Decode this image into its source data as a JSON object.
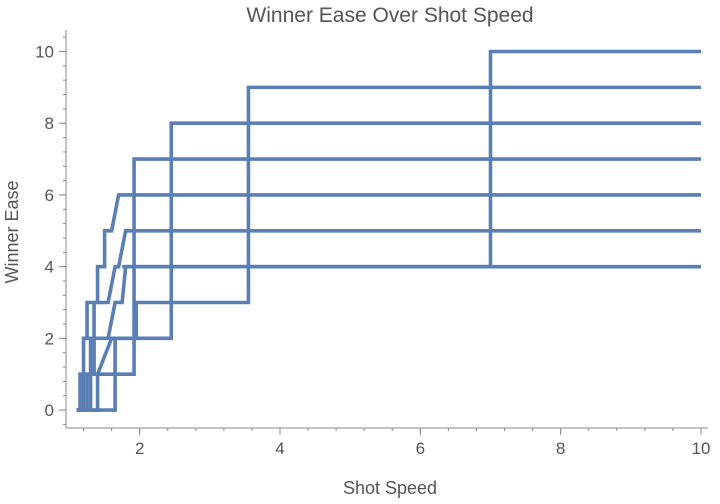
{
  "chart_data": {
    "type": "line",
    "title": "Winner Ease Over Shot Speed",
    "xlabel": "Shot Speed",
    "ylabel": "Winner Ease",
    "xlim": [
      0.95,
      10.1
    ],
    "ylim": [
      -0.5,
      10.6
    ],
    "xticks": [
      2,
      4,
      6,
      8,
      10
    ],
    "yticks": [
      0,
      2,
      4,
      6,
      8,
      10
    ],
    "x_minor_step": 0.4,
    "y_minor_step": 0.4,
    "line_color": "#5a7fb5",
    "series": [
      {
        "points": [
          [
            1.15,
            0
          ],
          [
            1.15,
            1
          ],
          [
            1.2,
            1
          ],
          [
            1.2,
            2
          ],
          [
            1.25,
            2
          ],
          [
            1.25,
            3
          ],
          [
            1.4,
            3
          ],
          [
            1.4,
            4
          ],
          [
            1.5,
            4
          ],
          [
            1.5,
            5
          ],
          [
            1.6,
            5
          ],
          [
            1.7,
            6
          ],
          [
            10,
            6
          ]
        ]
      },
      {
        "points": [
          [
            1.1,
            0
          ],
          [
            1.2,
            0
          ],
          [
            1.2,
            1
          ],
          [
            1.3,
            1
          ],
          [
            1.3,
            2
          ],
          [
            1.35,
            2
          ],
          [
            1.35,
            3
          ],
          [
            1.55,
            3
          ],
          [
            1.65,
            4
          ],
          [
            1.7,
            4
          ],
          [
            1.8,
            5
          ],
          [
            10,
            5
          ]
        ]
      },
      {
        "points": [
          [
            1.1,
            0
          ],
          [
            1.25,
            0
          ],
          [
            1.25,
            1
          ],
          [
            1.35,
            1
          ],
          [
            1.35,
            2
          ],
          [
            1.55,
            2
          ],
          [
            1.65,
            3
          ],
          [
            1.75,
            3
          ],
          [
            1.8,
            4
          ],
          [
            10,
            4
          ],
          [
            10,
            4
          ]
        ]
      },
      {
        "points": [
          [
            1.1,
            0
          ],
          [
            1.3,
            0
          ],
          [
            1.3,
            1
          ],
          [
            1.4,
            1
          ],
          [
            1.6,
            2
          ],
          [
            1.95,
            2
          ],
          [
            1.95,
            3
          ],
          [
            3.55,
            3
          ],
          [
            3.55,
            9
          ],
          [
            10,
            9
          ]
        ]
      },
      {
        "points": [
          [
            1.1,
            0
          ],
          [
            1.4,
            0
          ],
          [
            1.4,
            1
          ],
          [
            1.65,
            1
          ],
          [
            1.65,
            2
          ],
          [
            2.45,
            2
          ],
          [
            2.45,
            8
          ],
          [
            10,
            8
          ]
        ]
      },
      {
        "points": [
          [
            1.1,
            0
          ],
          [
            1.65,
            0
          ],
          [
            1.65,
            1
          ],
          [
            1.92,
            1
          ],
          [
            1.92,
            7
          ],
          [
            10,
            7
          ]
        ]
      },
      {
        "points": [
          [
            1.75,
            4
          ],
          [
            7.0,
            4
          ],
          [
            7.0,
            10
          ],
          [
            10,
            10
          ]
        ]
      }
    ]
  }
}
